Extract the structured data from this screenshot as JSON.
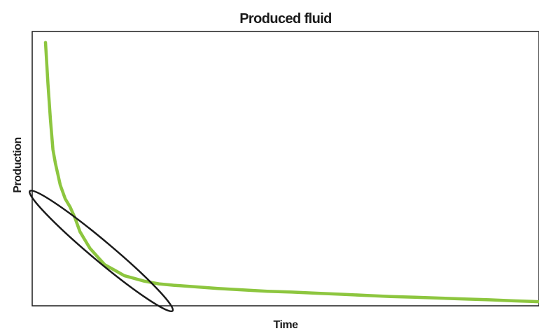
{
  "chart_data": {
    "type": "line",
    "title": "Produced fluid",
    "xlabel": "Time",
    "ylabel": "Production",
    "xlim": [
      0,
      100
    ],
    "ylim": [
      0,
      100
    ],
    "ticks": "none",
    "grid": false,
    "legend": "none",
    "series": [
      {
        "color": "#8dc63f",
        "x": [
          0,
          0.5,
          1,
          1.5,
          2,
          2.5,
          3,
          4,
          5,
          6,
          7,
          8,
          9,
          10,
          11,
          12,
          13,
          14,
          16,
          18,
          20,
          23,
          26,
          30,
          35,
          40,
          45,
          50,
          55,
          60,
          65,
          70,
          75,
          80,
          85,
          90,
          95,
          100
        ],
        "y": [
          96,
          81,
          68,
          57,
          52,
          48,
          44,
          39,
          36,
          32,
          27,
          24,
          21,
          19,
          17,
          15,
          14,
          13,
          11,
          10,
          9,
          8,
          7.5,
          7,
          6.3,
          5.8,
          5.3,
          5,
          4.6,
          4.2,
          3.8,
          3.4,
          3.1,
          2.8,
          2.5,
          2.2,
          1.8,
          1.5
        ]
      }
    ],
    "annotations": [
      {
        "type": "ellipse",
        "color": "#1a1a1a",
        "center": [
          11.3,
          20
        ],
        "radius_x": 14,
        "radius_y": 14
      }
    ]
  }
}
